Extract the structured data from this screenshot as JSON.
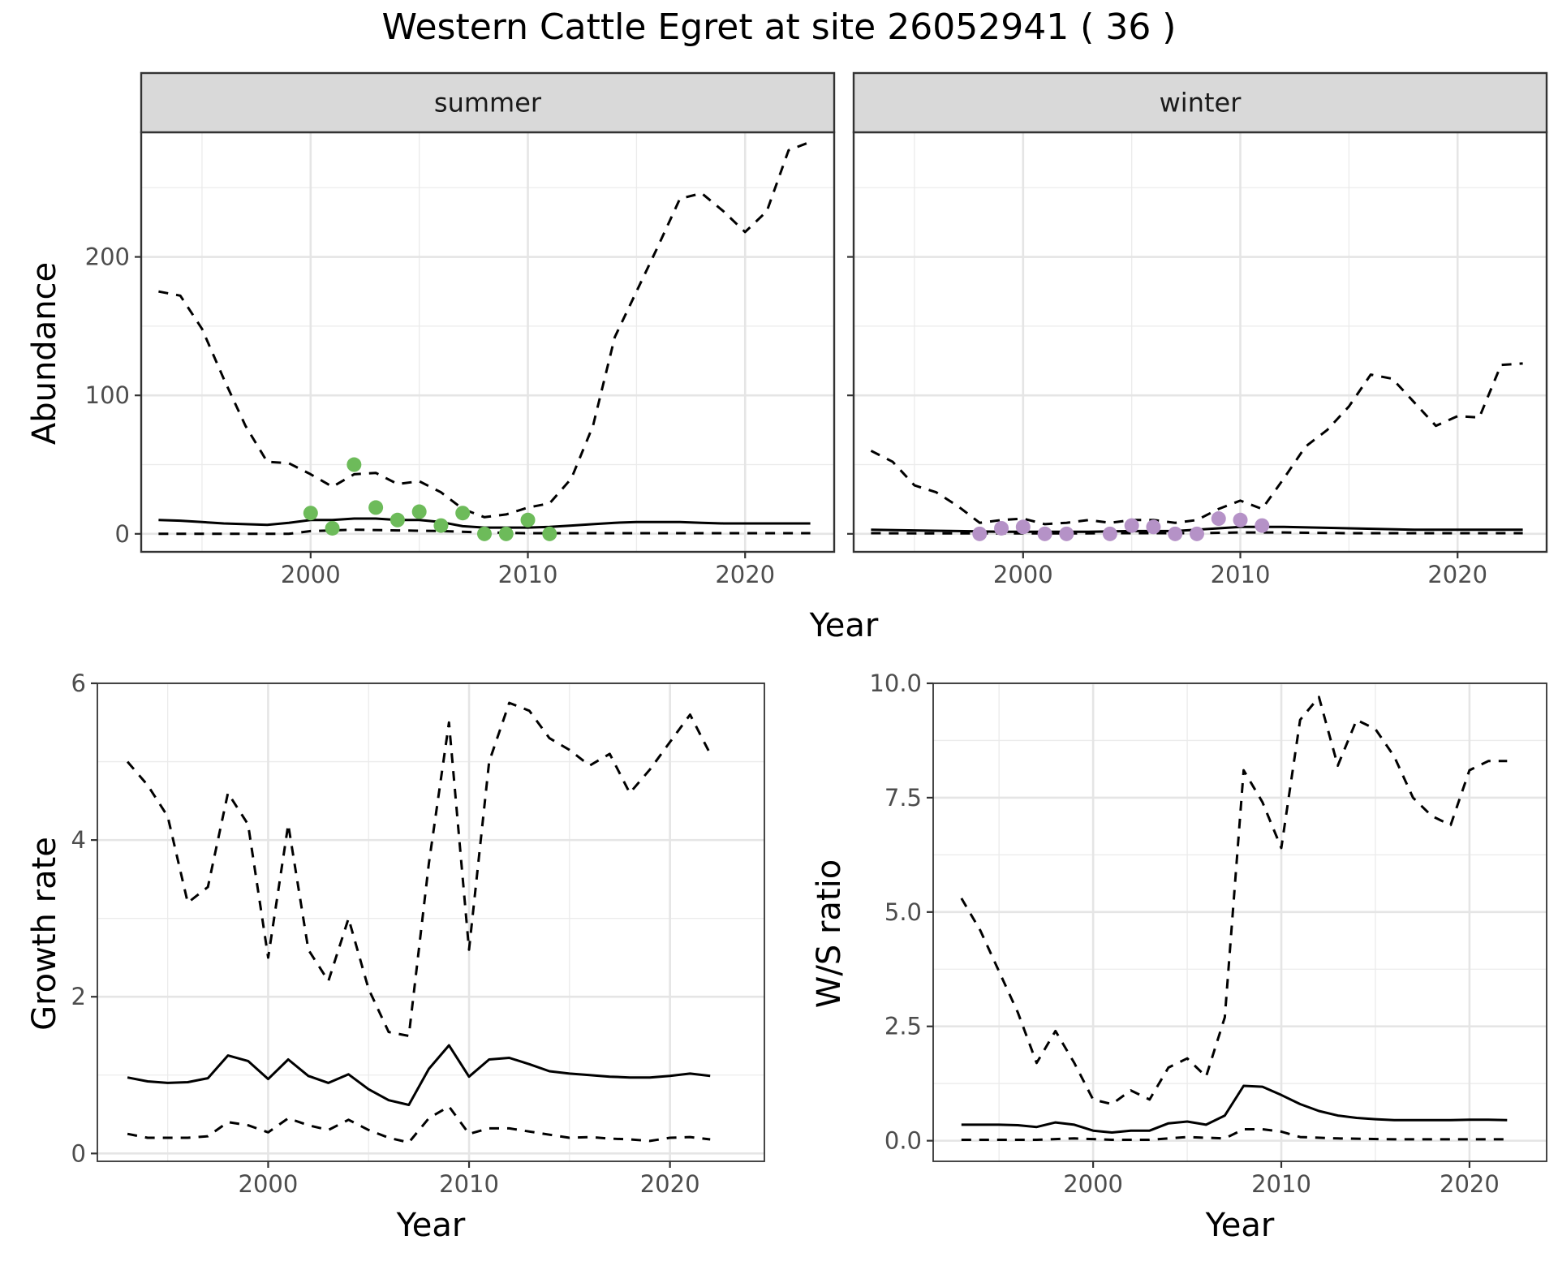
{
  "title": "Western Cattle Egret at site 26052941 ( 36 )",
  "chart_data": [
    {
      "id": "abundance-summer",
      "type": "line",
      "facet": "summer",
      "xlabel": "Year",
      "ylabel": "Abundance",
      "xlim": [
        1992.2,
        2024.1
      ],
      "ylim": [
        -13,
        290
      ],
      "xticks": [
        2000,
        2010,
        2020
      ],
      "yticks": [
        0,
        100,
        200
      ],
      "grid": true,
      "lines": [
        {
          "style": "dashed",
          "x": [
            1993,
            1994,
            1995,
            1996,
            1997,
            1998,
            1999,
            2000,
            2001,
            2002,
            2003,
            2004,
            2005,
            2006,
            2007,
            2008,
            2009,
            2010,
            2011,
            2012,
            2013,
            2014,
            2015,
            2016,
            2017,
            2018,
            2019,
            2020,
            2021,
            2022,
            2023
          ],
          "y": [
            175,
            172,
            148,
            112,
            78,
            52,
            51,
            43,
            34,
            43,
            44,
            36,
            38,
            30,
            18,
            12,
            14,
            19,
            22,
            40,
            78,
            142,
            175,
            208,
            242,
            246,
            233,
            218,
            233,
            277,
            283
          ]
        },
        {
          "style": "solid",
          "x": [
            1993,
            1994,
            1995,
            1996,
            1997,
            1998,
            1999,
            2000,
            2001,
            2002,
            2003,
            2004,
            2005,
            2006,
            2007,
            2008,
            2009,
            2010,
            2011,
            2012,
            2013,
            2014,
            2015,
            2016,
            2017,
            2018,
            2019,
            2020,
            2021,
            2022,
            2023
          ],
          "y": [
            10,
            9.5,
            8.5,
            7.5,
            7,
            6.5,
            8,
            10,
            10,
            11,
            11,
            10,
            10,
            8.5,
            5.5,
            4.5,
            4.5,
            4.5,
            5,
            6,
            7,
            8,
            8.5,
            8.5,
            8.5,
            8,
            7.5,
            7.5,
            7.5,
            7.5,
            7.5
          ]
        },
        {
          "style": "dashed",
          "x": [
            1993,
            1996,
            1999,
            2000,
            2002,
            2004,
            2006,
            2008,
            2010,
            2012,
            2015,
            2020,
            2023
          ],
          "y": [
            0,
            0,
            0,
            2,
            3,
            2.5,
            2,
            1,
            0.5,
            0.5,
            0.5,
            0.5,
            0.5
          ]
        }
      ],
      "points": {
        "color": "#6DBB5A",
        "x": [
          2000,
          2001,
          2002,
          2003,
          2004,
          2005,
          2006,
          2007,
          2008,
          2009,
          2010,
          2011
        ],
        "y": [
          15,
          4,
          50,
          19,
          10,
          16,
          6,
          15,
          0,
          0,
          10,
          0
        ]
      }
    },
    {
      "id": "abundance-winter",
      "type": "line",
      "facet": "winter",
      "xlabel": "Year",
      "ylabel": "",
      "xlim": [
        1992.2,
        2024.1
      ],
      "ylim": [
        -13,
        290
      ],
      "xticks": [
        2000,
        2010,
        2020
      ],
      "yticks": [
        0,
        100,
        200
      ],
      "grid": true,
      "lines": [
        {
          "style": "dashed",
          "x": [
            1993,
            1994,
            1995,
            1996,
            1997,
            1998,
            1999,
            2000,
            2001,
            2002,
            2003,
            2004,
            2005,
            2006,
            2007,
            2008,
            2009,
            2010,
            2011,
            2012,
            2013,
            2014,
            2015,
            2016,
            2017,
            2018,
            2019,
            2020,
            2021,
            2022,
            2023
          ],
          "y": [
            60,
            52,
            35,
            30,
            20,
            8,
            10,
            11,
            7,
            8,
            10,
            8,
            10,
            10,
            8,
            10,
            18,
            24,
            18,
            40,
            63,
            75,
            92,
            115,
            112,
            95,
            78,
            85,
            84,
            122,
            123
          ]
        },
        {
          "style": "solid",
          "x": [
            1993,
            1995,
            1997,
            1999,
            2001,
            2003,
            2005,
            2007,
            2009,
            2010,
            2012,
            2015,
            2018,
            2021,
            2023
          ],
          "y": [
            3,
            2.5,
            2,
            1.5,
            1.5,
            1.5,
            2,
            2,
            4,
            5,
            5,
            4,
            3,
            3,
            3
          ]
        },
        {
          "style": "dashed",
          "x": [
            1993,
            1996,
            1999,
            2002,
            2005,
            2008,
            2010,
            2012,
            2015,
            2020,
            2023
          ],
          "y": [
            0.5,
            0.3,
            0.3,
            0.3,
            0.5,
            0.5,
            1,
            1,
            0.5,
            0.5,
            0.5
          ]
        }
      ],
      "points": {
        "color": "#B592C7",
        "x": [
          1998,
          1999,
          2000,
          2001,
          2002,
          2004,
          2005,
          2006,
          2007,
          2008,
          2009,
          2010,
          2011
        ],
        "y": [
          0,
          4,
          5,
          0,
          0,
          0,
          6,
          5,
          0,
          0,
          11,
          10,
          6
        ]
      }
    },
    {
      "id": "growth-rate",
      "type": "line",
      "xlabel": "Year",
      "ylabel": "Growth rate",
      "xlim": [
        1991.5,
        2024.7
      ],
      "ylim": [
        -0.1,
        6.0
      ],
      "xticks": [
        2000,
        2010,
        2020
      ],
      "yticks": [
        0,
        2,
        4,
        6
      ],
      "grid": true,
      "lines": [
        {
          "style": "dashed",
          "x": [
            1993,
            1994,
            1995,
            1996,
            1997,
            1998,
            1999,
            2000,
            2001,
            2002,
            2003,
            2004,
            2005,
            2006,
            2007,
            2008,
            2009,
            2010,
            2011,
            2012,
            2013,
            2014,
            2015,
            2016,
            2017,
            2018,
            2019,
            2020,
            2021,
            2022
          ],
          "y": [
            5.0,
            4.7,
            4.3,
            3.2,
            3.4,
            4.6,
            4.2,
            2.5,
            4.2,
            2.6,
            2.2,
            3.0,
            2.1,
            1.55,
            1.5,
            3.7,
            5.5,
            2.6,
            5.0,
            5.75,
            5.65,
            5.3,
            5.15,
            4.95,
            5.1,
            4.6,
            4.9,
            5.25,
            5.6,
            5.1
          ]
        },
        {
          "style": "solid",
          "x": [
            1993,
            1994,
            1995,
            1996,
            1997,
            1998,
            1999,
            2000,
            2001,
            2002,
            2003,
            2004,
            2005,
            2006,
            2007,
            2008,
            2009,
            2010,
            2011,
            2012,
            2013,
            2014,
            2015,
            2016,
            2017,
            2018,
            2019,
            2020,
            2021,
            2022
          ],
          "y": [
            0.97,
            0.92,
            0.9,
            0.91,
            0.96,
            1.25,
            1.18,
            0.95,
            1.2,
            0.99,
            0.9,
            1.01,
            0.82,
            0.68,
            0.62,
            1.08,
            1.38,
            0.98,
            1.2,
            1.22,
            1.14,
            1.05,
            1.02,
            1.0,
            0.98,
            0.97,
            0.97,
            0.99,
            1.02,
            0.99
          ]
        },
        {
          "style": "dashed",
          "x": [
            1993,
            1994,
            1995,
            1996,
            1997,
            1998,
            1999,
            2000,
            2001,
            2002,
            2003,
            2004,
            2005,
            2006,
            2007,
            2008,
            2009,
            2010,
            2011,
            2012,
            2013,
            2014,
            2015,
            2016,
            2017,
            2018,
            2019,
            2020,
            2021,
            2022
          ],
          "y": [
            0.25,
            0.2,
            0.2,
            0.2,
            0.22,
            0.4,
            0.36,
            0.27,
            0.45,
            0.36,
            0.3,
            0.43,
            0.3,
            0.2,
            0.14,
            0.45,
            0.6,
            0.25,
            0.32,
            0.32,
            0.28,
            0.24,
            0.2,
            0.21,
            0.19,
            0.18,
            0.16,
            0.2,
            0.21,
            0.18
          ]
        }
      ]
    },
    {
      "id": "ws-ratio",
      "type": "line",
      "xlabel": "Year",
      "ylabel": "W/S ratio",
      "xlim": [
        1991.5,
        2024.1
      ],
      "ylim": [
        -0.45,
        10.0
      ],
      "xticks": [
        2000,
        2010,
        2020
      ],
      "yticks": [
        0.0,
        2.5,
        5.0,
        7.5,
        10.0
      ],
      "yticklabels": [
        "0.0",
        "2.5",
        "5.0",
        "7.5",
        "10.0"
      ],
      "grid": true,
      "lines": [
        {
          "style": "dashed",
          "x": [
            1993,
            1994,
            1995,
            1996,
            1997,
            1998,
            1999,
            2000,
            2001,
            2002,
            2003,
            2004,
            2005,
            2006,
            2007,
            2008,
            2009,
            2010,
            2011,
            2012,
            2013,
            2014,
            2015,
            2016,
            2017,
            2018,
            2019,
            2020,
            2021,
            2022
          ],
          "y": [
            5.3,
            4.6,
            3.7,
            2.8,
            1.7,
            2.4,
            1.7,
            0.9,
            0.8,
            1.1,
            0.9,
            1.6,
            1.8,
            1.4,
            2.7,
            8.1,
            7.4,
            6.4,
            9.2,
            9.7,
            8.2,
            9.2,
            9.0,
            8.4,
            7.5,
            7.1,
            6.9,
            8.1,
            8.3,
            8.3
          ]
        },
        {
          "style": "solid",
          "x": [
            1993,
            1994,
            1995,
            1996,
            1997,
            1998,
            1999,
            2000,
            2001,
            2002,
            2003,
            2004,
            2005,
            2006,
            2007,
            2008,
            2009,
            2010,
            2011,
            2012,
            2013,
            2014,
            2015,
            2016,
            2017,
            2018,
            2019,
            2020,
            2021,
            2022
          ],
          "y": [
            0.35,
            0.35,
            0.35,
            0.34,
            0.3,
            0.4,
            0.35,
            0.22,
            0.18,
            0.22,
            0.22,
            0.38,
            0.42,
            0.35,
            0.55,
            1.2,
            1.18,
            1.0,
            0.8,
            0.65,
            0.55,
            0.5,
            0.47,
            0.45,
            0.45,
            0.45,
            0.45,
            0.46,
            0.46,
            0.45
          ]
        },
        {
          "style": "dashed",
          "x": [
            1993,
            1995,
            1997,
            1999,
            2001,
            2003,
            2005,
            2007,
            2008,
            2009,
            2010,
            2011,
            2013,
            2016,
            2019,
            2022
          ],
          "y": [
            0.02,
            0.02,
            0.02,
            0.05,
            0.02,
            0.02,
            0.08,
            0.05,
            0.25,
            0.25,
            0.2,
            0.08,
            0.05,
            0.03,
            0.03,
            0.03
          ]
        }
      ]
    }
  ]
}
